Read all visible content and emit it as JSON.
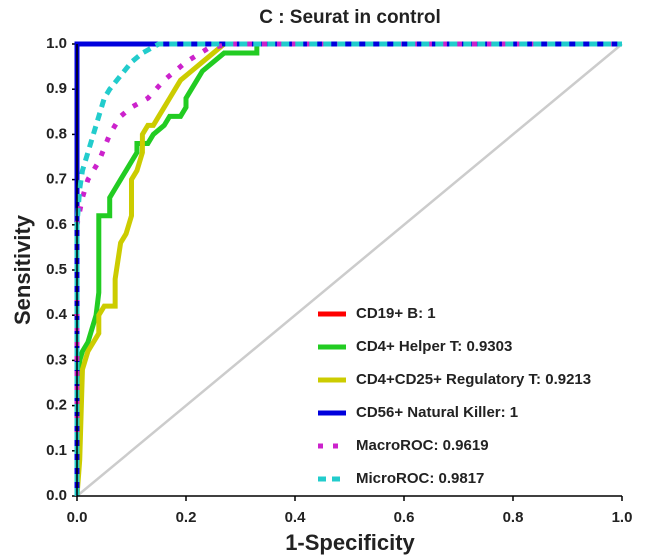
{
  "chart_data": {
    "type": "line",
    "title": "C : Seurat in control",
    "xlabel": "1-Specificity",
    "ylabel": "Sensitivity",
    "xlim": [
      0,
      1
    ],
    "ylim": [
      0,
      1
    ],
    "xticks": [
      {
        "value": 0,
        "label": "0.0"
      },
      0.2,
      0.4,
      0.6,
      0.8,
      {
        "value": 1,
        "label": "1.0"
      }
    ],
    "yticks": [
      {
        "value": 0,
        "label": "0.0"
      },
      0.1,
      0.2,
      0.3,
      0.4,
      0.5,
      0.6,
      0.7,
      0.8,
      0.9,
      {
        "value": 1,
        "label": "1.0"
      }
    ],
    "grid": false,
    "legend": "lower right",
    "series": [
      {
        "name": "CD19+ B: 1",
        "color": "#ff0000",
        "dash": "solid",
        "x": [
          0,
          0,
          1
        ],
        "values": [
          0,
          1,
          1
        ]
      },
      {
        "name": "CD4+ Helper T: 0.9303",
        "color": "#22cc22",
        "dash": "solid",
        "x": [
          0,
          0.005,
          0.01,
          0.02,
          0.03,
          0.035,
          0.04,
          0.04,
          0.06,
          0.06,
          0.07,
          0.08,
          0.09,
          0.1,
          0.11,
          0.11,
          0.13,
          0.14,
          0.16,
          0.17,
          0.19,
          0.2,
          0.2,
          0.21,
          0.22,
          0.23,
          0.25,
          0.27,
          0.33,
          0.33,
          1
        ],
        "values": [
          0,
          0.3,
          0.32,
          0.34,
          0.38,
          0.4,
          0.45,
          0.62,
          0.62,
          0.66,
          0.68,
          0.7,
          0.72,
          0.74,
          0.76,
          0.78,
          0.78,
          0.8,
          0.82,
          0.84,
          0.84,
          0.86,
          0.88,
          0.9,
          0.92,
          0.94,
          0.96,
          0.98,
          0.98,
          1,
          1
        ]
      },
      {
        "name": "CD4+CD25+ Regulatory T: 0.9213",
        "color": "#cccc00",
        "dash": "solid",
        "x": [
          0,
          0.005,
          0.01,
          0.015,
          0.02,
          0.03,
          0.04,
          0.04,
          0.05,
          0.07,
          0.07,
          0.08,
          0.09,
          0.1,
          0.1,
          0.11,
          0.12,
          0.12,
          0.13,
          0.14,
          0.15,
          0.16,
          0.17,
          0.18,
          0.19,
          0.21,
          0.23,
          0.25,
          0.27,
          1
        ],
        "values": [
          0,
          0.08,
          0.28,
          0.3,
          0.32,
          0.34,
          0.36,
          0.4,
          0.42,
          0.42,
          0.48,
          0.56,
          0.58,
          0.62,
          0.7,
          0.72,
          0.76,
          0.8,
          0.82,
          0.82,
          0.84,
          0.86,
          0.88,
          0.9,
          0.92,
          0.94,
          0.96,
          0.98,
          1,
          1
        ]
      },
      {
        "name": "CD56+ Natural Killer: 1",
        "color": "#0000dd",
        "dash": "solid",
        "x": [
          0,
          0,
          1
        ],
        "values": [
          0,
          1,
          1
        ]
      },
      {
        "name": "MacroROC: 0.9619",
        "color": "#cc22cc",
        "dash": "dotted",
        "x": [
          0,
          0,
          0.01,
          0.02,
          0.04,
          0.06,
          0.08,
          0.1,
          0.13,
          0.16,
          0.2,
          0.24,
          0.28,
          1
        ],
        "values": [
          0,
          0.6,
          0.66,
          0.7,
          0.74,
          0.8,
          0.84,
          0.86,
          0.88,
          0.92,
          0.96,
          0.99,
          1,
          1
        ]
      },
      {
        "name": "MicroROC: 0.9817",
        "color": "#22cccc",
        "dash": "dashed",
        "x": [
          0,
          0,
          0.005,
          0.01,
          0.02,
          0.03,
          0.04,
          0.05,
          0.06,
          0.08,
          0.1,
          0.12,
          0.15,
          1
        ],
        "values": [
          0,
          0.6,
          0.68,
          0.72,
          0.76,
          0.8,
          0.84,
          0.88,
          0.9,
          0.93,
          0.96,
          0.98,
          1,
          1
        ]
      }
    ]
  }
}
